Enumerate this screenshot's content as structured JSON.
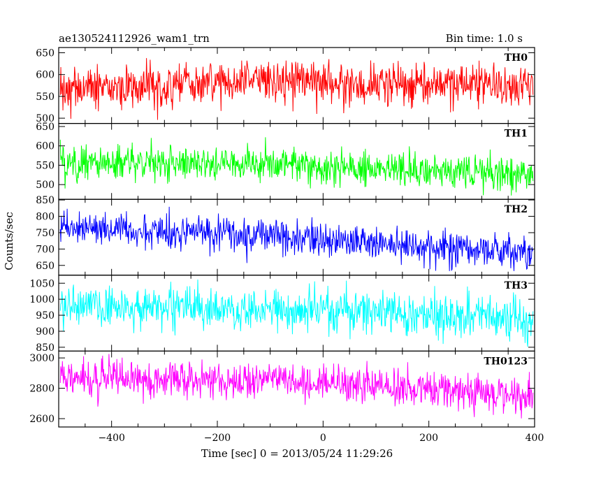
{
  "header": {
    "title_left": "ae130524112926_wam1_trn",
    "title_right": "Bin time: 1.0 s"
  },
  "chart_data": {
    "type": "line",
    "xlabel": "Time [sec] 0 = 2013/05/24 11:29:26",
    "ylabel": "Counts/sec",
    "xlim": [
      -500,
      400
    ],
    "x_ticks": [
      -400,
      -200,
      0,
      200,
      400
    ],
    "x_tick_labels": [
      "−400",
      "−200",
      "0",
      "200",
      "400"
    ],
    "bin_seconds": 1.0,
    "grid": false,
    "panels": [
      {
        "label": "TH0",
        "color": "#ff0000",
        "ylim": [
          488,
          662
        ],
        "y_ticks": [
          500,
          550,
          600,
          650
        ],
        "mean_trend": [
          [
            -500,
            565
          ],
          [
            -350,
            570
          ],
          [
            -200,
            580
          ],
          [
            -50,
            590
          ],
          [
            50,
            575
          ],
          [
            150,
            575
          ],
          [
            250,
            580
          ],
          [
            400,
            570
          ]
        ],
        "noise_sd": 25,
        "min": 495,
        "max": 660
      },
      {
        "label": "TH1",
        "color": "#00ff00",
        "ylim": [
          462,
          658
        ],
        "y_ticks": [
          500,
          550,
          600,
          650
        ],
        "mean_trend": [
          [
            -500,
            555
          ],
          [
            -300,
            555
          ],
          [
            -100,
            550
          ],
          [
            100,
            540
          ],
          [
            300,
            530
          ],
          [
            400,
            525
          ]
        ],
        "noise_sd": 22,
        "min": 470,
        "max": 650
      },
      {
        "label": "TH2",
        "color": "#0000ff",
        "ylim": [
          620,
          852
        ],
        "y_ticks": [
          650,
          700,
          750,
          800,
          850
        ],
        "mean_trend": [
          [
            -500,
            765
          ],
          [
            -300,
            755
          ],
          [
            -100,
            745
          ],
          [
            0,
            730
          ],
          [
            100,
            715
          ],
          [
            200,
            705
          ],
          [
            300,
            700
          ],
          [
            400,
            690
          ]
        ],
        "noise_sd": 25,
        "min": 630,
        "max": 850
      },
      {
        "label": "TH3",
        "color": "#00ffff",
        "ylim": [
          838,
          1075
        ],
        "y_ticks": [
          850,
          900,
          950,
          1000,
          1050
        ],
        "mean_trend": [
          [
            -500,
            975
          ],
          [
            -300,
            970
          ],
          [
            -100,
            965
          ],
          [
            100,
            960
          ],
          [
            300,
            945
          ],
          [
            400,
            935
          ]
        ],
        "noise_sd": 32,
        "min": 845,
        "max": 1070
      },
      {
        "label": "TH0123",
        "color": "#ff00ff",
        "ylim": [
          2545,
          3045
        ],
        "y_ticks": [
          2600,
          2800,
          3000
        ],
        "mean_trend": [
          [
            -500,
            2870
          ],
          [
            -300,
            2865
          ],
          [
            -100,
            2850
          ],
          [
            100,
            2820
          ],
          [
            250,
            2780
          ],
          [
            400,
            2730
          ]
        ],
        "noise_sd": 60,
        "min": 2600,
        "max": 3040
      }
    ]
  }
}
